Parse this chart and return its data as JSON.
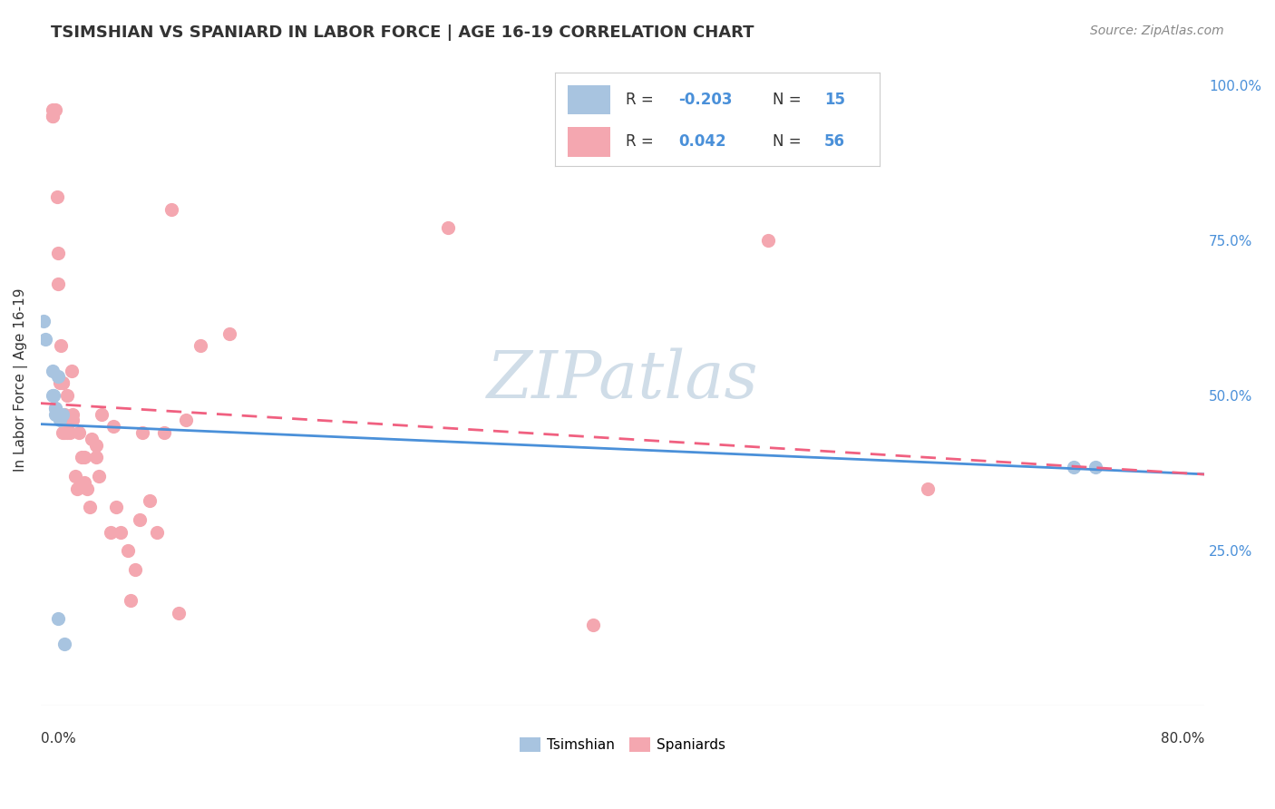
{
  "title": "TSIMSHIAN VS SPANIARD IN LABOR FORCE | AGE 16-19 CORRELATION CHART",
  "source_text": "Source: ZipAtlas.com",
  "ylabel": "In Labor Force | Age 16-19",
  "right_yticks": [
    "100.0%",
    "75.0%",
    "50.0%",
    "25.0%"
  ],
  "right_ytick_vals": [
    1.0,
    0.75,
    0.5,
    0.25
  ],
  "xlim": [
    0.0,
    0.8
  ],
  "ylim": [
    0.0,
    1.05
  ],
  "tsimshian_color": "#a8c4e0",
  "spaniard_color": "#f4a7b0",
  "tsimshian_line_color": "#4a90d9",
  "spaniard_line_color": "#f06080",
  "background_color": "#ffffff",
  "watermark_color": "#d0dde8",
  "tsimshian_x": [
    0.002,
    0.003,
    0.008,
    0.008,
    0.009,
    0.01,
    0.01,
    0.01,
    0.012,
    0.013,
    0.015,
    0.016,
    0.71,
    0.725,
    0.012
  ],
  "tsimshian_y": [
    0.62,
    0.59,
    0.54,
    0.5,
    0.5,
    0.48,
    0.48,
    0.47,
    0.53,
    0.46,
    0.47,
    0.1,
    0.385,
    0.385,
    0.14
  ],
  "spaniard_x": [
    0.008,
    0.008,
    0.008,
    0.01,
    0.011,
    0.012,
    0.012,
    0.013,
    0.014,
    0.014,
    0.015,
    0.015,
    0.015,
    0.016,
    0.016,
    0.017,
    0.018,
    0.018,
    0.02,
    0.021,
    0.022,
    0.022,
    0.024,
    0.025,
    0.026,
    0.028,
    0.03,
    0.03,
    0.032,
    0.034,
    0.035,
    0.038,
    0.038,
    0.04,
    0.042,
    0.048,
    0.05,
    0.052,
    0.055,
    0.06,
    0.062,
    0.065,
    0.068,
    0.07,
    0.075,
    0.08,
    0.085,
    0.09,
    0.095,
    0.1,
    0.11,
    0.13,
    0.28,
    0.38,
    0.5,
    0.61
  ],
  "spaniard_y": [
    0.95,
    0.95,
    0.96,
    0.96,
    0.82,
    0.73,
    0.68,
    0.52,
    0.58,
    0.47,
    0.52,
    0.52,
    0.44,
    0.47,
    0.44,
    0.46,
    0.44,
    0.5,
    0.44,
    0.54,
    0.46,
    0.47,
    0.37,
    0.35,
    0.44,
    0.4,
    0.4,
    0.36,
    0.35,
    0.32,
    0.43,
    0.42,
    0.4,
    0.37,
    0.47,
    0.28,
    0.45,
    0.32,
    0.28,
    0.25,
    0.17,
    0.22,
    0.3,
    0.44,
    0.33,
    0.28,
    0.44,
    0.8,
    0.15,
    0.46,
    0.58,
    0.6,
    0.77,
    0.13,
    0.75,
    0.35
  ]
}
